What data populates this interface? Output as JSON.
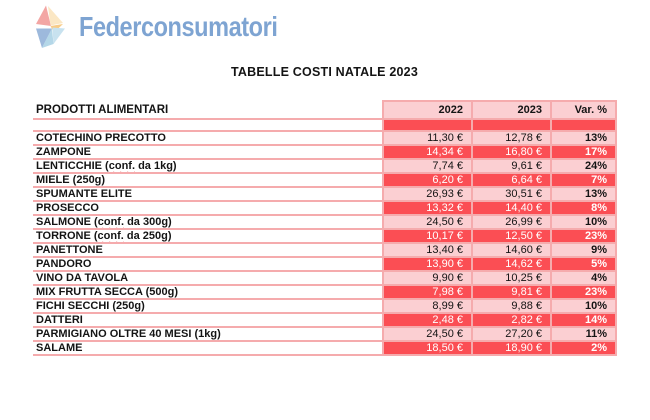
{
  "logo": {
    "text": "Federconsumatori"
  },
  "title": "TABELLE COSTI NATALE 2023",
  "table": {
    "columns": {
      "product": "PRODOTTI ALIMENTARI",
      "year_2022": "2022",
      "year_2023": "2023",
      "variation": "Var. %"
    },
    "rows": [
      {
        "product": "COTECHINO PRECOTTO",
        "price_2022": "11,30 €",
        "price_2023": "12,78 €",
        "variation": "13%",
        "highlight": false
      },
      {
        "product": "ZAMPONE",
        "price_2022": "14,34 €",
        "price_2023": "16,80 €",
        "variation": "17%",
        "highlight": true
      },
      {
        "product": "LENTICCHIE (conf. da 1kg)",
        "price_2022": "7,74 €",
        "price_2023": "9,61 €",
        "variation": "24%",
        "highlight": false,
        "misspelled": "conf."
      },
      {
        "product": "MIELE (250g)",
        "price_2022": "6,20 €",
        "price_2023": "6,64 €",
        "variation": "7%",
        "highlight": true
      },
      {
        "product": "SPUMANTE ELITE",
        "price_2022": "26,93 €",
        "price_2023": "30,51 €",
        "variation": "13%",
        "highlight": false
      },
      {
        "product": "PROSECCO",
        "price_2022": "13,32 €",
        "price_2023": "14,40 €",
        "variation": "8%",
        "highlight": true
      },
      {
        "product": "SALMONE (conf. da 300g)",
        "price_2022": "24,50 €",
        "price_2023": "26,99 €",
        "variation": "10%",
        "highlight": false,
        "misspelled": "conf."
      },
      {
        "product": "TORRONE (conf. da 250g)",
        "price_2022": "10,17 €",
        "price_2023": "12,50 €",
        "variation": "23%",
        "highlight": true,
        "misspelled": "conf."
      },
      {
        "product": "PANETTONE",
        "price_2022": "13,40 €",
        "price_2023": "14,60 €",
        "variation": "9%",
        "highlight": false
      },
      {
        "product": "PANDORO",
        "price_2022": "13,90 €",
        "price_2023": "14,62 €",
        "variation": "5%",
        "highlight": true
      },
      {
        "product": "VINO DA TAVOLA",
        "price_2022": "9,90 €",
        "price_2023": "10,25 €",
        "variation": "4%",
        "highlight": false
      },
      {
        "product": "MIX FRUTTA SECCA (500g)",
        "price_2022": "7,98 €",
        "price_2023": "9,81 €",
        "variation": "23%",
        "highlight": true
      },
      {
        "product": "FICHI SECCHI (250g)",
        "price_2022": "8,99 €",
        "price_2023": "9,88 €",
        "variation": "10%",
        "highlight": false
      },
      {
        "product": "DATTERI",
        "price_2022": "2,48 €",
        "price_2023": "2,82 €",
        "variation": "14%",
        "highlight": true
      },
      {
        "product": "PARMIGIANO OLTRE 40 MESI (1kg)",
        "price_2022": "24,50 €",
        "price_2023": "27,20 €",
        "variation": "11%",
        "highlight": false
      },
      {
        "product": "SALAME",
        "price_2022": "18,50 €",
        "price_2023": "18,90 €",
        "variation": "2%",
        "highlight": true
      }
    ]
  },
  "colors": {
    "accent_red": "#fb4e54",
    "light_pink": "#fbcfd2",
    "border_pink": "#f5abad",
    "logo_blue": "#7ea4d2",
    "squiggle_red": "#e01f1f"
  }
}
